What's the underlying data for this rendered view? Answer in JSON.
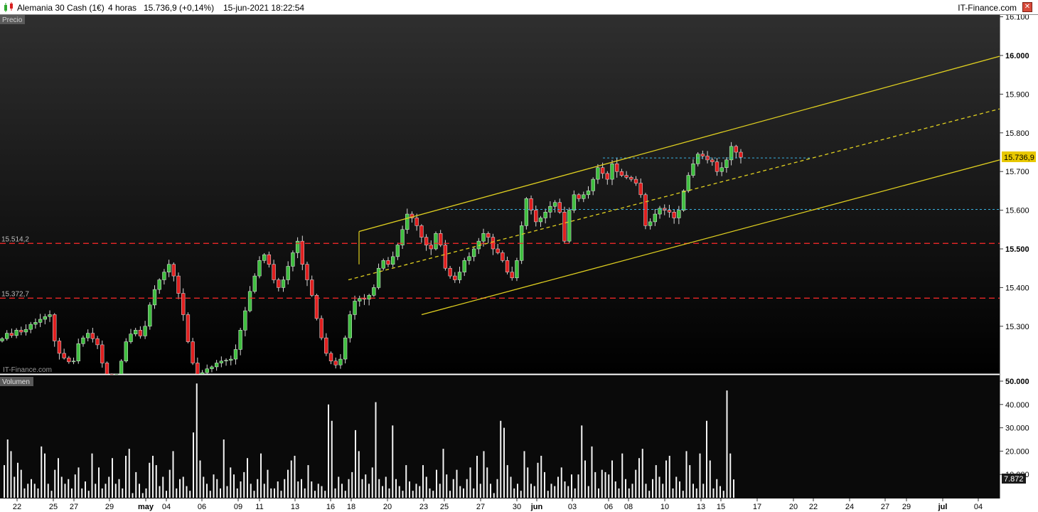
{
  "title": {
    "instrument": "Alemania 30 Cash (1€)",
    "timeframe": "4 horas",
    "quote": "15.736,9 (+0,14%)",
    "datetime": "15-jun-2021 18:22:54",
    "brand": "IT-Finance.com",
    "close_symbol": "✕"
  },
  "panels": {
    "price_label": "Precio",
    "volume_label": "Volumen",
    "watermark": "IT-Finance.com"
  },
  "colors": {
    "up": "#3fbf3f",
    "down": "#e01e1e",
    "channel": "#e0d020",
    "support": "#ff2a2a",
    "level": "#3ab0e0",
    "background": "#0a0a0a"
  },
  "chart_data": [
    {
      "type": "candlestick",
      "panel": "Precio",
      "y_ticks": [
        "16.100",
        "16.000",
        "15.900",
        "15.800",
        "15.700",
        "15.600",
        "15.500",
        "15.400",
        "15.300"
      ],
      "ylim": [
        15200,
        16110
      ],
      "last_price_label": "15.736,9",
      "last_price": 15736.9,
      "horizontal_levels": [
        {
          "value": 15514.2,
          "label": "15.514,2",
          "style": "dashed",
          "color": "red"
        },
        {
          "value": 15372.7,
          "label": "15.372,7",
          "style": "dashed",
          "color": "red"
        },
        {
          "value": 15602,
          "label": "",
          "style": "dotted",
          "color": "blue"
        },
        {
          "value": 15735,
          "label": "",
          "style": "dotted",
          "color": "blue"
        }
      ],
      "channel": {
        "upper": [
          {
            "date": "18-may",
            "value": 15545
          },
          {
            "date": "jul end",
            "value": 15998
          }
        ],
        "middle": [
          {
            "date": "18-may",
            "value": 15420
          },
          {
            "date": "jul end",
            "value": 15862
          }
        ],
        "lower": [
          {
            "date": "24-may",
            "value": 15330
          },
          {
            "date": "jul end",
            "value": 15730
          }
        ]
      },
      "x_ticks": [
        "22",
        "25",
        "27",
        "29",
        "may",
        "04",
        "06",
        "09",
        "11",
        "13",
        "16",
        "18",
        "20",
        "23",
        "25",
        "27",
        "30",
        "jun",
        "03",
        "06",
        "08",
        "10",
        "13",
        "15",
        "17",
        "20",
        "22",
        "24",
        "27",
        "29",
        "jul",
        "04"
      ],
      "closes": [
        15268,
        15282,
        15276,
        15290,
        15285,
        15292,
        15305,
        15310,
        15318,
        15325,
        15330,
        15262,
        15230,
        15218,
        15208,
        15210,
        15255,
        15270,
        15282,
        15268,
        15252,
        15205,
        15170,
        15150,
        15160,
        15210,
        15260,
        15280,
        15290,
        15275,
        15300,
        15355,
        15395,
        15420,
        15440,
        15460,
        15430,
        15385,
        15330,
        15260,
        15205,
        15175,
        15180,
        15190,
        15195,
        15205,
        15210,
        15212,
        15215,
        15240,
        15290,
        15340,
        15390,
        15430,
        15470,
        15485,
        15460,
        15420,
        15400,
        15420,
        15455,
        15490,
        15520,
        15460,
        15420,
        15380,
        15320,
        15270,
        15230,
        15210,
        15200,
        15215,
        15270,
        15330,
        15365,
        15372,
        15370,
        15380,
        15400,
        15450,
        15470,
        15460,
        15480,
        15510,
        15550,
        15590,
        15580,
        15560,
        15530,
        15510,
        15500,
        15540,
        15510,
        15450,
        15430,
        15420,
        15440,
        15470,
        15480,
        15500,
        15520,
        15540,
        15530,
        15500,
        15490,
        15470,
        15440,
        15425,
        15470,
        15560,
        15630,
        15600,
        15570,
        15580,
        15595,
        15610,
        15620,
        15595,
        15520,
        15600,
        15640,
        15630,
        15640,
        15650,
        15680,
        15710,
        15695,
        15680,
        15720,
        15700,
        15690,
        15685,
        15680,
        15670,
        15640,
        15560,
        15570,
        15590,
        15605,
        15600,
        15595,
        15580,
        15600,
        15650,
        15690,
        15720,
        15745,
        15740,
        15730,
        15725,
        15700,
        15710,
        15730,
        15765,
        15750,
        15736.9
      ]
    },
    {
      "type": "bar",
      "panel": "Volumen",
      "y_ticks": [
        "50.000",
        "40.000",
        "30.000",
        "20.000",
        "10.000"
      ],
      "ylim": [
        0,
        50000
      ],
      "last_value_label": "7.872",
      "last_value": 7872,
      "values": [
        14000,
        25000,
        20000,
        9000,
        15000,
        12000,
        4000,
        6000,
        8000,
        6000,
        4000,
        22000,
        19000,
        6000,
        3000,
        12000,
        17000,
        9000,
        6000,
        8000,
        4000,
        10000,
        13000,
        4000,
        7000,
        3000,
        19000,
        6000,
        13000,
        4000,
        6000,
        9000,
        17000,
        6000,
        8000,
        4000,
        18000,
        21000,
        2000,
        11000,
        6000,
        2000,
        4000,
        15000,
        18000,
        14000,
        5000,
        9000,
        3000,
        12000,
        20000,
        4000,
        8000,
        9000,
        5000,
        3000,
        28000,
        49000,
        16000,
        9000,
        6000,
        3000,
        10000,
        8000,
        4000,
        25000,
        5000,
        13000,
        10000,
        4000,
        7000,
        11000,
        17000,
        6000,
        3000,
        8000,
        19000,
        6000,
        12000,
        4000,
        4000,
        7000,
        3000,
        8000,
        12000,
        16000,
        18000,
        7000,
        8000,
        4000,
        14000,
        7000,
        3000,
        6000,
        5000,
        3000,
        40000,
        33000,
        4000,
        9000,
        6000,
        3000,
        8000,
        11000,
        29000,
        20000,
        8000,
        10000,
        6000,
        13000,
        41000,
        8000,
        5000,
        9000,
        4000,
        31000,
        8000,
        5000,
        3000,
        14000,
        7000,
        3000,
        6000,
        5000,
        14000,
        9000,
        4000,
        3000,
        12000,
        6000,
        21000,
        10000,
        3000,
        8000,
        12000,
        5000,
        4000,
        8000,
        13000,
        4000,
        18000,
        6000,
        20000,
        13000,
        6000,
        2000,
        8000,
        33000,
        30000,
        14000,
        9000,
        4000,
        6000,
        3000,
        20000,
        13000,
        6000,
        5000,
        15000,
        18000,
        11000,
        3000,
        6000,
        5000,
        9000,
        13000,
        7000,
        5000,
        10000,
        4000,
        10000,
        31000,
        16000,
        5000,
        22000,
        11000,
        4000,
        12000,
        11000,
        10000,
        16000,
        7000,
        4000,
        19000,
        8000,
        4000,
        6000,
        12000,
        17000,
        21000,
        6000,
        3000,
        8000,
        14000,
        9000,
        6000,
        16000,
        18000,
        4000,
        9000,
        7000,
        3000,
        20000,
        14000,
        6000,
        4000,
        19000,
        6000,
        33000,
        16000,
        4000,
        8000,
        5000,
        3000,
        46000,
        19000,
        7872
      ]
    }
  ]
}
